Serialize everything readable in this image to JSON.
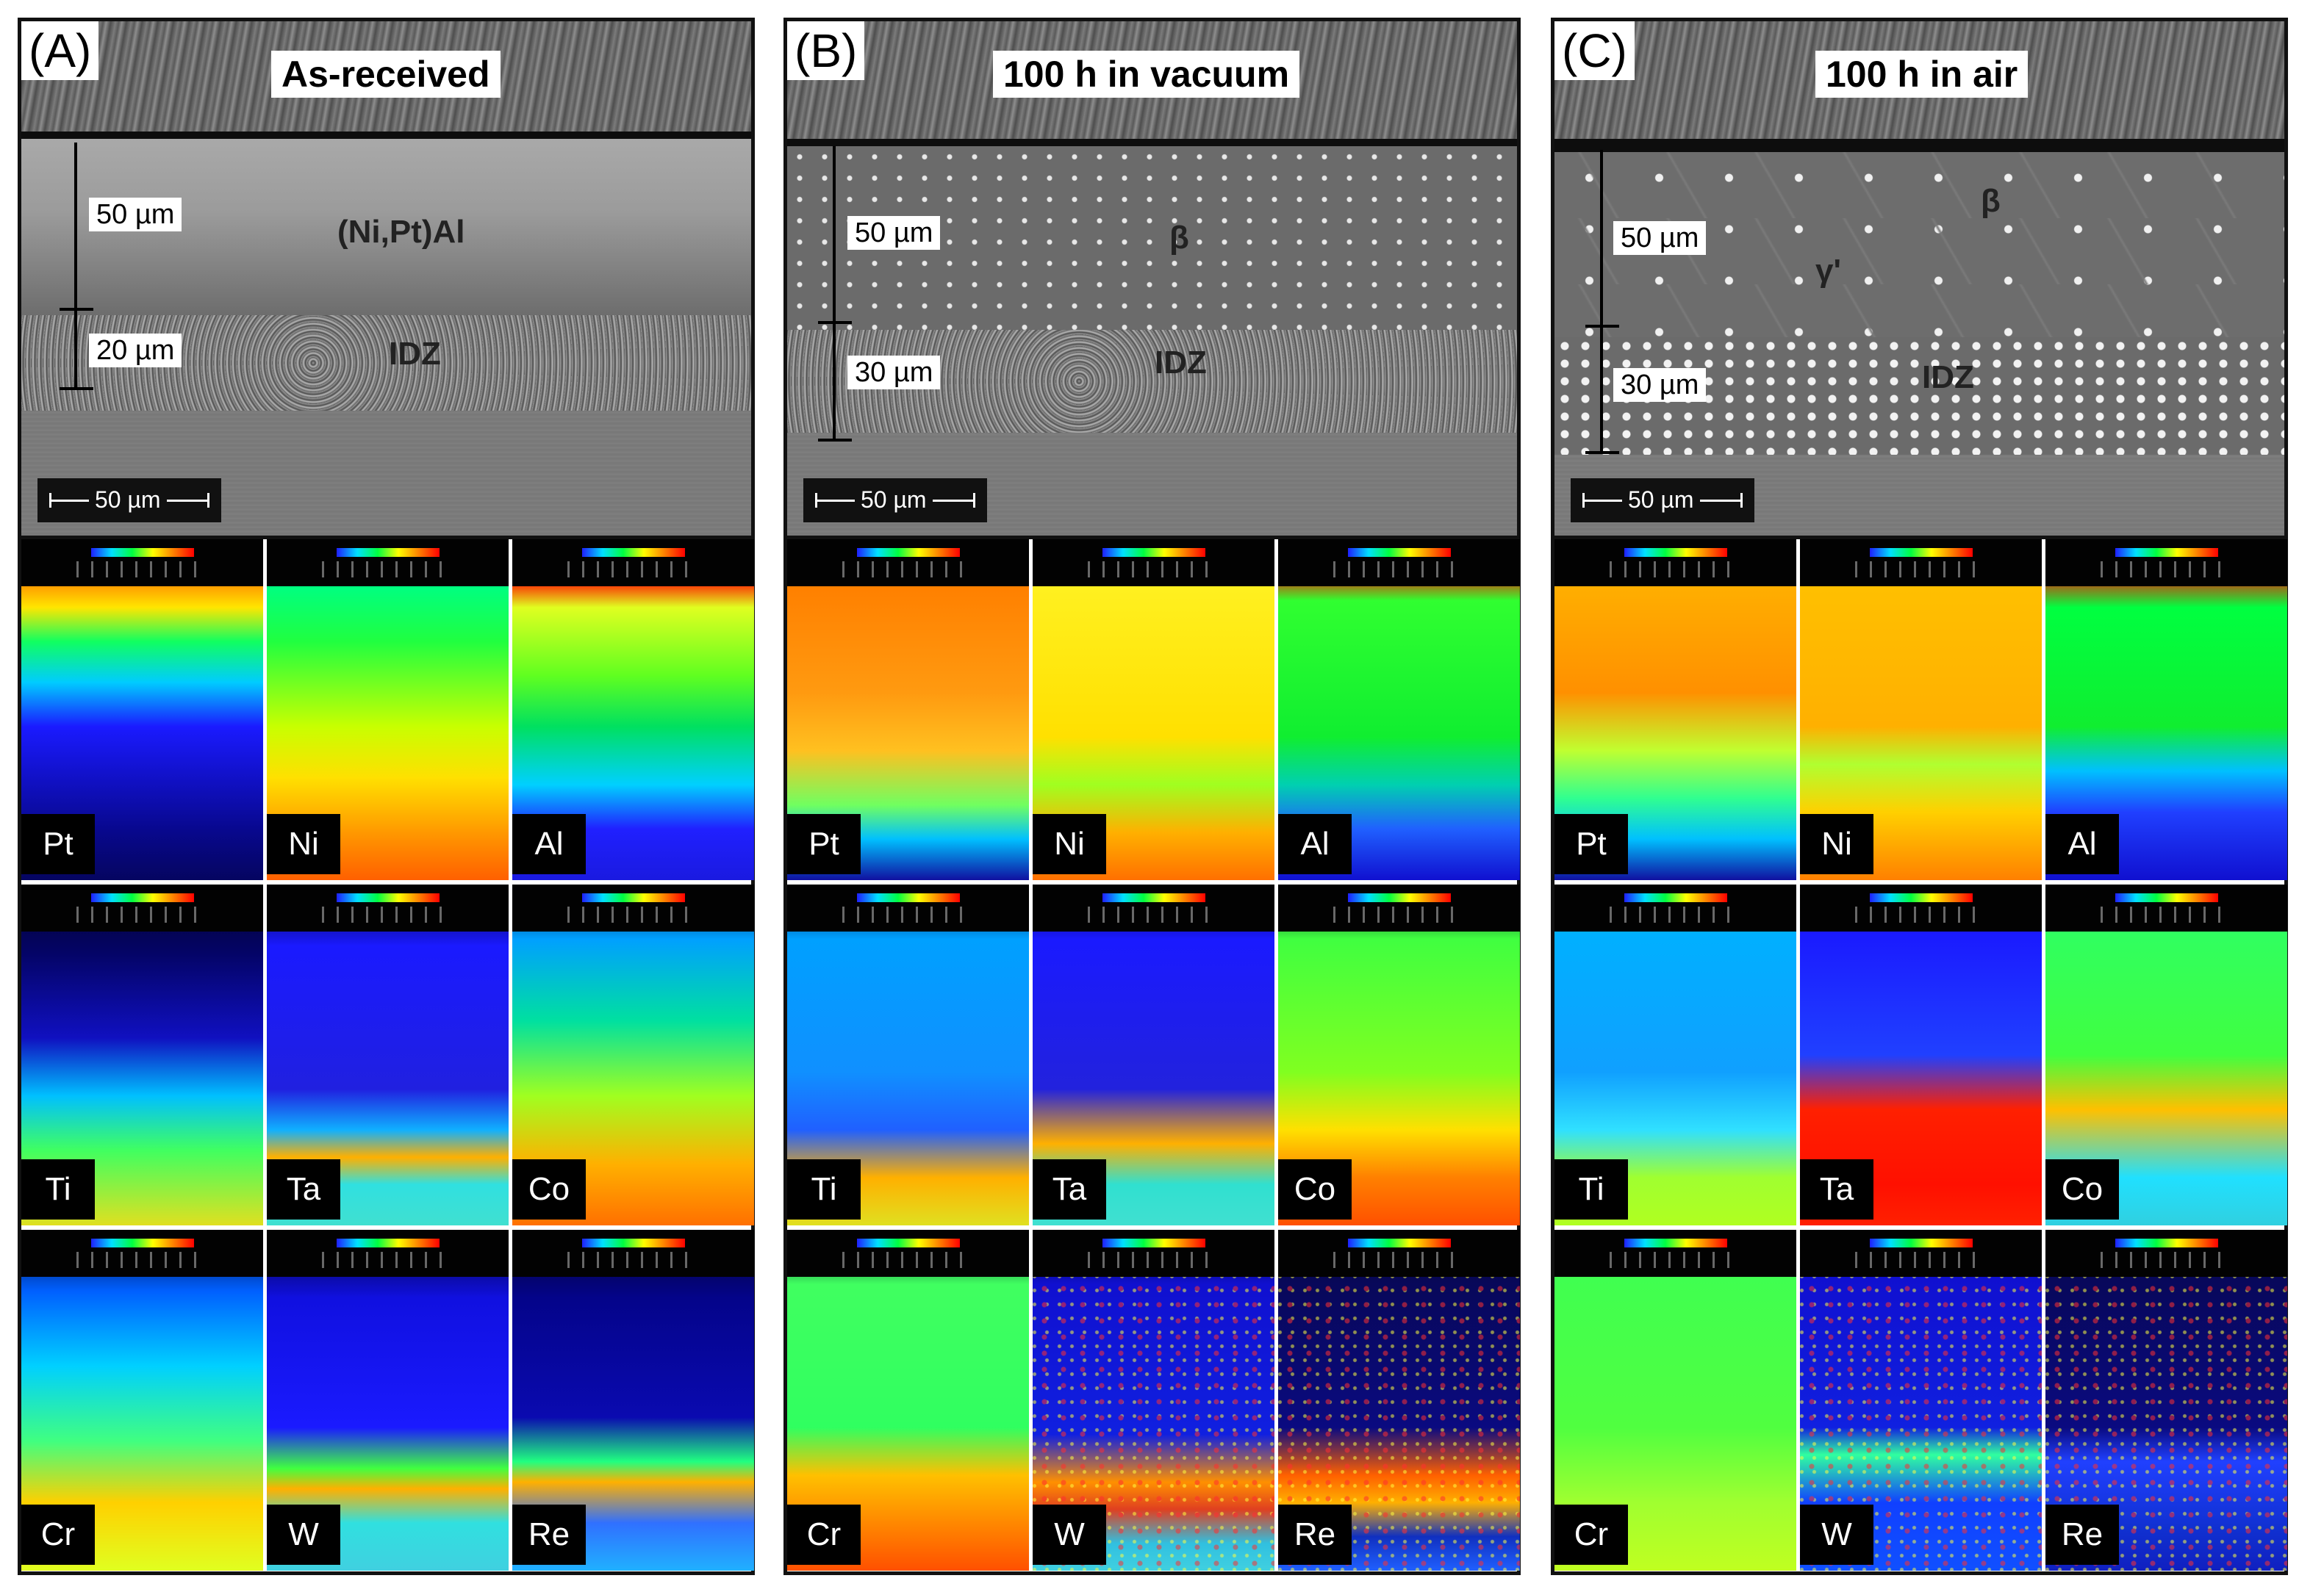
{
  "panels": [
    {
      "letter": "(A)",
      "title": "As-received",
      "dims": [
        "50 µm",
        "20 µm"
      ],
      "zones": {
        "beta": "(Ni,Pt)Al",
        "idz": "IDZ"
      },
      "scalebar": "50 µm",
      "maps": [
        "Pt",
        "Ni",
        "Al",
        "Ti",
        "Ta",
        "Co",
        "Cr",
        "W",
        "Re"
      ]
    },
    {
      "letter": "(B)",
      "title": "100 h in vacuum",
      "dims": [
        "50 µm",
        "30 µm"
      ],
      "zones": {
        "beta": "β",
        "idz": "IDZ"
      },
      "scalebar": "50 µm",
      "maps": [
        "Pt",
        "Ni",
        "Al",
        "Ti",
        "Ta",
        "Co",
        "Cr",
        "W",
        "Re"
      ]
    },
    {
      "letter": "(C)",
      "title": "100 h in air",
      "dims": [
        "50 µm",
        "30 µm"
      ],
      "zones": {
        "beta": "β",
        "idz": "IDZ",
        "gamma": "γ'"
      },
      "scalebar": "50 µm",
      "maps": [
        "Pt",
        "Ni",
        "Al",
        "Ti",
        "Ta",
        "Co",
        "Cr",
        "W",
        "Re"
      ]
    }
  ],
  "map_colors": {
    "A": [
      "vert-pt-a",
      "vert-ni-a",
      "vert-al-a",
      "vert-ti-a",
      "vert-ta-a",
      "vert-co-a",
      "vert-cr-a",
      "vert-w-a",
      "vert-re-a"
    ]
  }
}
